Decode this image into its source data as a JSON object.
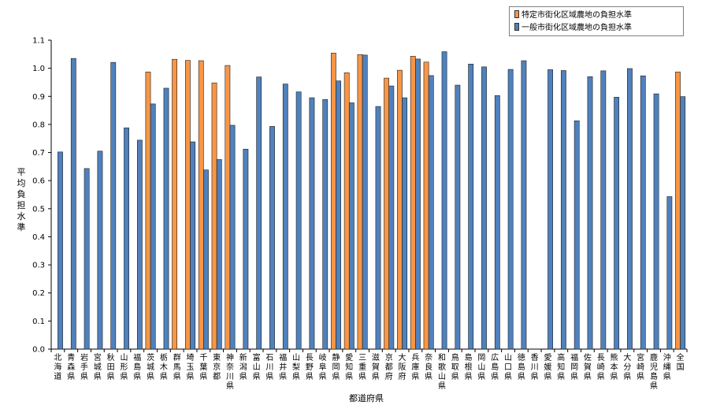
{
  "chart_data": {
    "type": "bar",
    "xlabel": "都道府県",
    "ylabel": "平均負担水準",
    "ylim": [
      0,
      1.1
    ],
    "yticks": [
      "0.0",
      "0.1",
      "0.2",
      "0.3",
      "0.4",
      "0.5",
      "0.6",
      "0.7",
      "0.8",
      "0.9",
      "1.0",
      "1.1"
    ],
    "grid": false,
    "legend_position": "top-right",
    "categories": [
      "北海道",
      "青森県",
      "岩手県",
      "宮城県",
      "秋田県",
      "山形県",
      "福島県",
      "茨城県",
      "栃木県",
      "群馬県",
      "埼玉県",
      "千葉県",
      "東京都",
      "神奈川県",
      "新潟県",
      "富山県",
      "石川県",
      "福井県",
      "山梨県",
      "長野県",
      "岐阜県",
      "静岡県",
      "愛知県",
      "三重県",
      "滋賀県",
      "京都府",
      "大阪府",
      "兵庫県",
      "奈良県",
      "和歌山県",
      "鳥取県",
      "島根県",
      "岡山県",
      "広島県",
      "山口県",
      "徳島県",
      "香川県",
      "愛媛県",
      "高知県",
      "福岡県",
      "佐賀県",
      "長崎県",
      "熊本県",
      "大分県",
      "宮崎県",
      "鹿児島県",
      "沖縄県",
      "全国"
    ],
    "series": [
      {
        "name": "特定市街化区域農地の負担水準",
        "color": "#f79646",
        "values": [
          null,
          null,
          null,
          null,
          null,
          null,
          null,
          0.987,
          null,
          1.032,
          1.028,
          1.027,
          0.948,
          1.01,
          null,
          null,
          null,
          null,
          null,
          null,
          null,
          1.054,
          0.984,
          1.049,
          null,
          0.965,
          0.993,
          1.043,
          1.022,
          null,
          null,
          null,
          null,
          null,
          null,
          null,
          null,
          null,
          null,
          null,
          null,
          null,
          null,
          null,
          null,
          null,
          null,
          0.987
        ]
      },
      {
        "name": "一般市街化区域農地の負担水準",
        "color": "#4f81bd",
        "values": [
          0.702,
          1.035,
          0.643,
          0.705,
          1.021,
          0.788,
          0.744,
          0.873,
          0.929,
          null,
          0.738,
          0.638,
          0.675,
          0.797,
          0.712,
          0.969,
          0.793,
          0.944,
          0.916,
          0.895,
          0.889,
          0.955,
          0.877,
          1.047,
          0.864,
          0.937,
          0.895,
          1.033,
          0.974,
          1.059,
          0.94,
          1.015,
          1.005,
          0.903,
          0.996,
          1.027,
          null,
          0.995,
          0.992,
          0.813,
          0.97,
          0.991,
          0.897,
          0.999,
          0.973,
          0.909,
          0.543,
          0.899
        ]
      }
    ]
  }
}
